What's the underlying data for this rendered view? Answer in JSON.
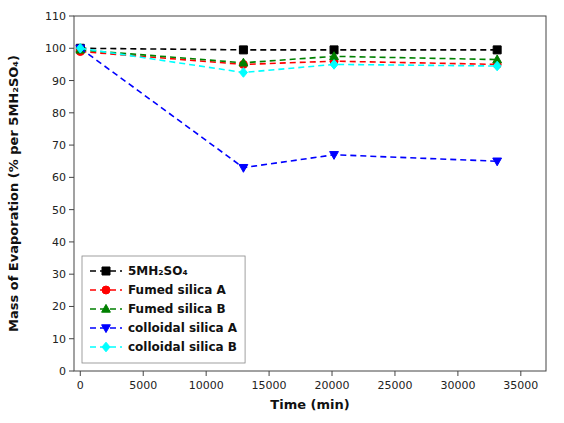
{
  "chart_data": {
    "type": "line",
    "xlabel": "Time (min)",
    "ylabel": "Mass of Evaporation (% per 5MH₂SO₄)",
    "x": [
      0,
      12960,
      20160,
      33120
    ],
    "xlim": [
      -500,
      37000
    ],
    "ylim": [
      0,
      110
    ],
    "xticks": [
      0,
      5000,
      10000,
      15000,
      20000,
      25000,
      30000,
      35000
    ],
    "yticks": [
      0,
      10,
      20,
      30,
      40,
      50,
      60,
      70,
      80,
      90,
      100,
      110
    ],
    "grid": false,
    "legend": "lower left",
    "series": [
      {
        "name": "5MH₂SO₄",
        "color": "black",
        "marker": "square",
        "line_style": "dashed",
        "values": [
          100,
          99.5,
          99.5,
          99.5
        ]
      },
      {
        "name": "Fumed silica A",
        "color": "red",
        "marker": "circle",
        "line_style": "dashed",
        "values": [
          99,
          95,
          96,
          95
        ]
      },
      {
        "name": "Fumed silica B",
        "color": "green",
        "marker": "triangle-up",
        "line_style": "dashed",
        "values": [
          99.5,
          95.5,
          97.5,
          96.5
        ]
      },
      {
        "name": "colloidal silica A",
        "color": "blue",
        "marker": "triangle-down",
        "line_style": "dashed",
        "values": [
          100,
          63,
          67,
          65
        ]
      },
      {
        "name": "colloidal silica B",
        "color": "cyan",
        "marker": "diamond",
        "line_style": "dashed",
        "values": [
          100,
          92.5,
          95,
          94.5
        ]
      }
    ]
  }
}
